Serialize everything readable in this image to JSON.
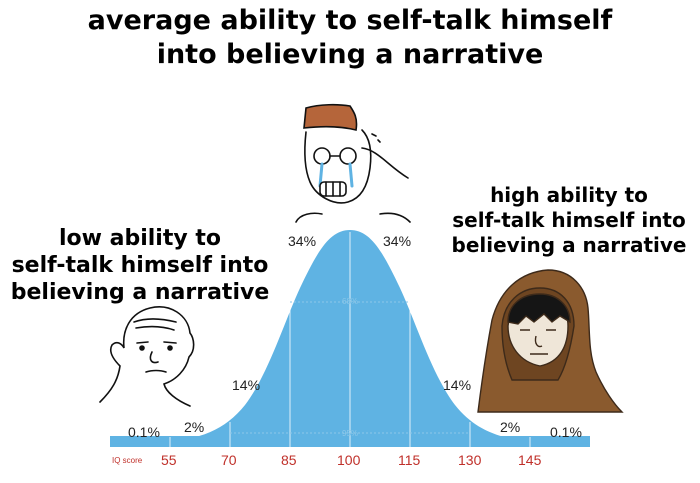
{
  "title_lines": [
    "average ability to self-talk himself",
    "into believing a narrative"
  ],
  "left_caption_lines": [
    "low ability to",
    "self-talk himself into",
    "believing a narrative"
  ],
  "right_caption_lines": [
    "high ability to",
    "self-talk himself into",
    "believing a narrative"
  ],
  "colors": {
    "curve": "#5fb3e3",
    "text": "#000000",
    "iq_axis": "#c0302a"
  },
  "chart": {
    "percentages": {
      "left_far": "0.1%",
      "left_2": "2%",
      "left_14": "14%",
      "left_34": "34%",
      "right_34": "34%",
      "right_14": "14%",
      "right_2": "2%",
      "right_far": "0.1%",
      "inner_68": "68%",
      "inner_95": "95%"
    },
    "iq_label": "IQ score",
    "iq_ticks": [
      "55",
      "70",
      "85",
      "100",
      "115",
      "130",
      "145"
    ]
  },
  "characters": {
    "left": "wojak-bald-icon",
    "center": "wojak-crying-glasses-icon",
    "right": "hooded-monk-icon"
  }
}
